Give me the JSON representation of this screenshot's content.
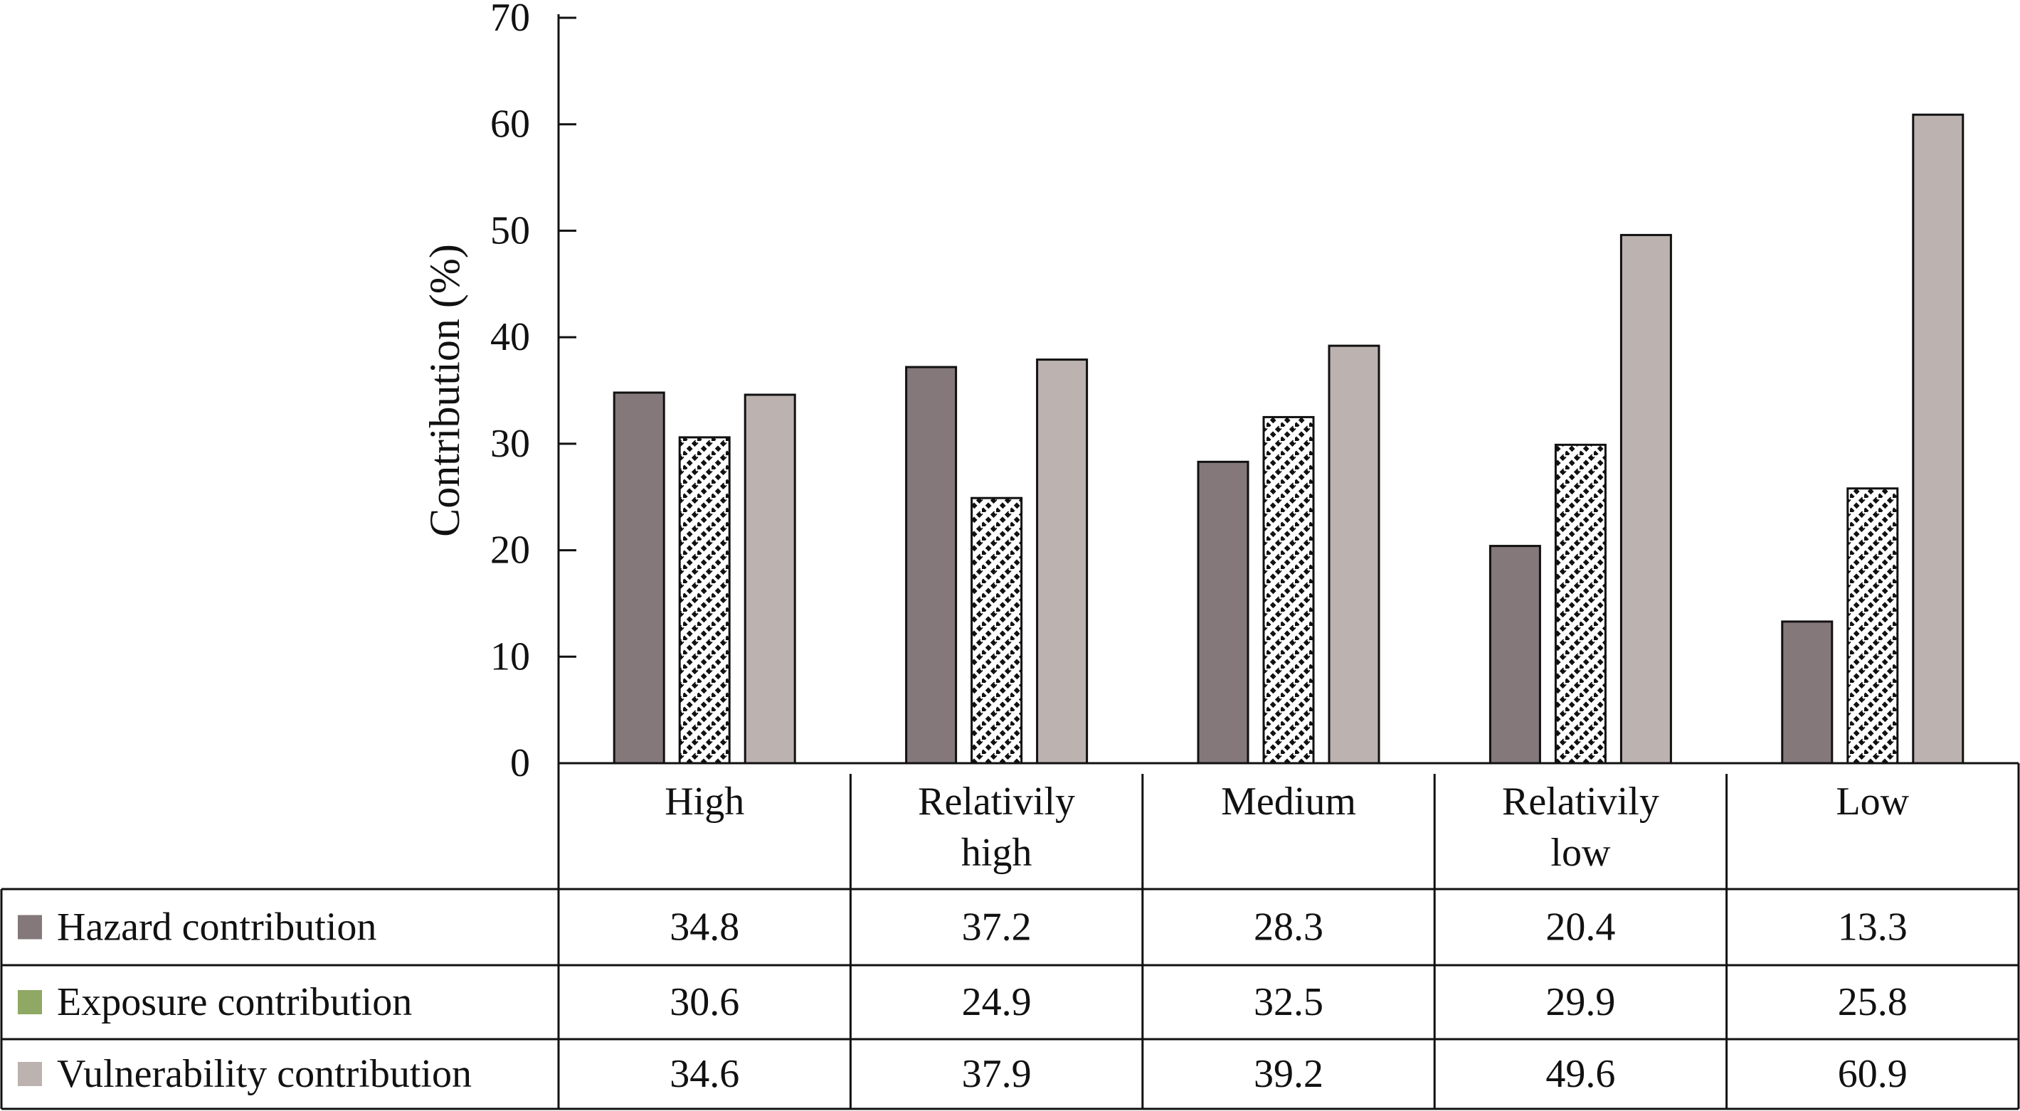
{
  "chart_data": {
    "type": "bar",
    "ylabel": "Contribution (%)",
    "ylim": [
      0,
      70
    ],
    "yticks": [
      0,
      10,
      20,
      30,
      40,
      50,
      60,
      70
    ],
    "grid": false,
    "legend": "data-table-left",
    "categories": [
      [
        "High"
      ],
      [
        "Relativily",
        "high"
      ],
      [
        "Medium"
      ],
      [
        "Relativily",
        "low"
      ],
      [
        "Low"
      ]
    ],
    "series": [
      {
        "name": "Hazard contribution",
        "values": [
          34.8,
          37.2,
          28.3,
          20.4,
          13.3
        ],
        "color": "#84787a",
        "pattern": "solid"
      },
      {
        "name": "Exposure contribution",
        "values": [
          30.6,
          24.9,
          32.5,
          29.9,
          25.8
        ],
        "color": "#8fa863",
        "pattern": "diagonal-hatch"
      },
      {
        "name": "Vulnerability contribution",
        "values": [
          34.6,
          37.9,
          39.2,
          49.6,
          60.9
        ],
        "color": "#bcb2b0",
        "pattern": "solid"
      }
    ]
  }
}
